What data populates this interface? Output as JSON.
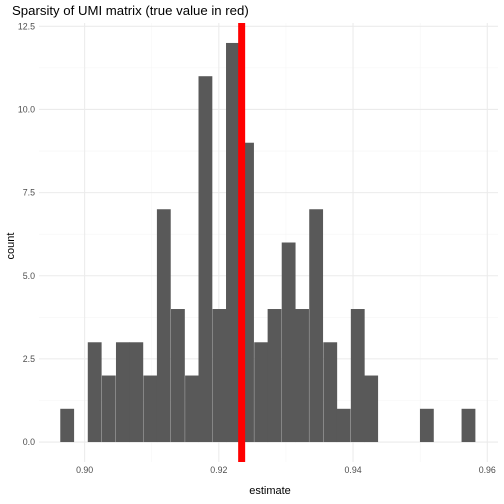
{
  "chart_data": {
    "type": "bar",
    "title": "Sparsity of UMI matrix (true value in red)",
    "xlabel": "estimate",
    "ylabel": "count",
    "xlim": [
      0.8932,
      0.9616
    ],
    "ylim": [
      -0.6,
      12.6
    ],
    "x_ticks": [
      0.9,
      0.92,
      0.94,
      0.96
    ],
    "x_tick_labels": [
      "0.90",
      "0.92",
      "0.94",
      "0.96"
    ],
    "y_ticks": [
      0,
      2.5,
      5,
      7.5,
      10,
      12.5
    ],
    "y_tick_labels": [
      "0.0",
      "2.5",
      "5.0",
      "7.5",
      "10.0",
      "12.5"
    ],
    "grid": true,
    "bin_width": 0.00206,
    "bins": [
      {
        "x": 0.8974,
        "count": 1
      },
      {
        "x": 0.8995,
        "count": 0
      },
      {
        "x": 0.9015,
        "count": 3
      },
      {
        "x": 0.9036,
        "count": 2
      },
      {
        "x": 0.9057,
        "count": 3
      },
      {
        "x": 0.9077,
        "count": 3
      },
      {
        "x": 0.9098,
        "count": 2
      },
      {
        "x": 0.9118,
        "count": 7
      },
      {
        "x": 0.9139,
        "count": 4
      },
      {
        "x": 0.916,
        "count": 2
      },
      {
        "x": 0.918,
        "count": 11
      },
      {
        "x": 0.9201,
        "count": 4
      },
      {
        "x": 0.9221,
        "count": 12
      },
      {
        "x": 0.9242,
        "count": 9
      },
      {
        "x": 0.9263,
        "count": 3
      },
      {
        "x": 0.9283,
        "count": 4
      },
      {
        "x": 0.9304,
        "count": 6
      },
      {
        "x": 0.9324,
        "count": 4
      },
      {
        "x": 0.9345,
        "count": 7
      },
      {
        "x": 0.9366,
        "count": 3
      },
      {
        "x": 0.9386,
        "count": 1
      },
      {
        "x": 0.9407,
        "count": 4
      },
      {
        "x": 0.9427,
        "count": 2
      },
      {
        "x": 0.9448,
        "count": 0
      },
      {
        "x": 0.9469,
        "count": 0
      },
      {
        "x": 0.9489,
        "count": 0
      },
      {
        "x": 0.951,
        "count": 1
      },
      {
        "x": 0.953,
        "count": 0
      },
      {
        "x": 0.9551,
        "count": 0
      },
      {
        "x": 0.9572,
        "count": 1
      }
    ],
    "reference_line": {
      "x": 0.9234,
      "color": "#ff0000"
    },
    "bar_color": "#595959",
    "grid_major_color": "#ebebeb",
    "grid_minor_color": "#f5f5f5"
  }
}
